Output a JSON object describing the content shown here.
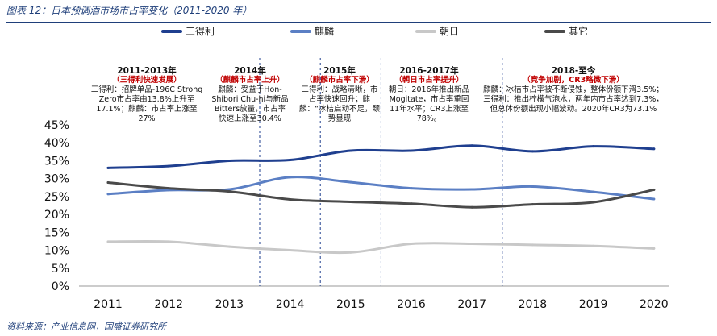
{
  "header": {
    "title": "图表 12：日本预调酒市场市占率变化（2011-2020 年）"
  },
  "footer": {
    "source": "资料来源：产业信息网，国盛证券研究所"
  },
  "colors": {
    "三得利": "#1f3f8f",
    "麒麟": "#5b7fc4",
    "朝日": "#c8c8c8",
    "其它": "#4a4a4a",
    "divider": "#1f3f8f",
    "annotation_red": "#c00000"
  },
  "chart_data": {
    "type": "line",
    "x": [
      "2011",
      "2012",
      "2013",
      "2014",
      "2015",
      "2016",
      "2017",
      "2018",
      "2019",
      "2020"
    ],
    "ylim": [
      0,
      45
    ],
    "yticks": [
      "0%",
      "5%",
      "10%",
      "15%",
      "20%",
      "25%",
      "30%",
      "35%",
      "40%",
      "45%"
    ],
    "grid": false,
    "legend": "top",
    "series": [
      {
        "name": "三得利",
        "values": [
          33.0,
          33.5,
          35.0,
          35.2,
          37.8,
          37.8,
          39.2,
          37.6,
          39.0,
          38.3
        ]
      },
      {
        "name": "麒麟",
        "values": [
          25.7,
          26.8,
          27.0,
          30.4,
          29.0,
          27.3,
          27.0,
          27.8,
          26.3,
          24.3
        ]
      },
      {
        "name": "朝日",
        "values": [
          12.4,
          12.4,
          11.0,
          10.0,
          9.4,
          11.8,
          11.8,
          11.5,
          11.2,
          10.5
        ]
      },
      {
        "name": "其它",
        "values": [
          28.9,
          27.3,
          26.4,
          24.2,
          23.5,
          23.0,
          22.0,
          22.8,
          23.4,
          26.9
        ]
      }
    ],
    "dividers_between": [
      [
        2013,
        2014
      ],
      [
        2014,
        2015
      ],
      [
        2015,
        2016
      ],
      [
        2017,
        2018
      ]
    ]
  },
  "annotations": [
    {
      "title": "2011-2013年",
      "subtitle": "（三得利快速发展）",
      "body": "三得利：招牌单品-196C Strong Zero市占率由13.8%上升至17.1%；麒麟：市占率上涨至27%"
    },
    {
      "title": "2014年",
      "subtitle": "（麒麟市占率上升）",
      "body": "麒麟：受益于Hon-Shibori Chu-hi与新品Bitters放量，市占率快速上涨至30.4%"
    },
    {
      "title": "2015年",
      "subtitle": "（麒麟市占率下滑）",
      "body": "三得利：战略清晰，市占率快速回升；麒麟：“冰桔启动不足，颓势显现"
    },
    {
      "title": "2016-2017年",
      "subtitle": "（朝日市占率提升）",
      "body": "朝日：2016年推出新品Mogitate，市占率重回11年水平；CR3上涨至78%。"
    },
    {
      "title": "2018-至今",
      "subtitle": "（竞争加剧，CR3略微下滑）",
      "body": "麒麟：冰桔市占率被不断侵蚀，整体份额下滑3.5%；三得利：推出柠檬气泡水，两年内市占率达到7.3%，但总体份额出现小幅波动。2020年CR3为73.1%"
    }
  ]
}
